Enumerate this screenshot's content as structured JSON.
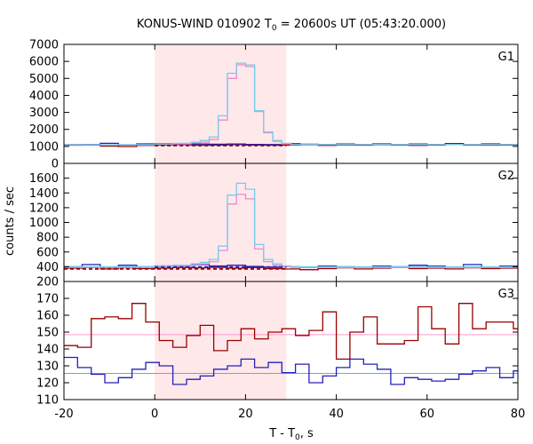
{
  "chart_data": {
    "type": "line",
    "title": {
      "pre": "KONUS-WIND 010902 T",
      "sub": "0",
      "post": " = 20600s UT (05:43:20.000)"
    },
    "xlabel": {
      "pre": "T - T",
      "sub": "0",
      "post": ", s"
    },
    "ylabel": "counts / sec",
    "xlim": [
      -20,
      80
    ],
    "x_ticks": [
      -20,
      0,
      20,
      40,
      60,
      80
    ],
    "x_tick_labels": [
      "-20",
      "0",
      "20",
      "40",
      "60",
      "80"
    ],
    "highlight_interval": [
      0,
      29
    ],
    "colors": {
      "highlight": "#ffe8ea",
      "dark_red": "#990000",
      "blue": "#2222bb",
      "pink": "#ee88cc",
      "light_blue": "#77ccee",
      "bg_pink_line": "#ff99cc",
      "bg_cyan_line": "#44bbdd"
    },
    "panels": [
      {
        "label": "G1",
        "ylim": [
          0,
          7000
        ],
        "yticks": [
          0,
          1000,
          2000,
          3000,
          4000,
          5000,
          6000,
          7000
        ],
        "ytick_labels": [
          "0",
          "1000",
          "2000",
          "3000",
          "4000",
          "5000",
          "6000",
          "7000"
        ],
        "series": [
          {
            "kind": "step",
            "color_key": "dark_red",
            "edges": [
              -20,
              -16,
              -12,
              -8,
              -4,
              0,
              4,
              8,
              12,
              16,
              20,
              24,
              28,
              32,
              36,
              40,
              44,
              48,
              52,
              56,
              60,
              64,
              68,
              72,
              76,
              80
            ],
            "values": [
              1070,
              1080,
              1020,
              990,
              1060,
              1080,
              1100,
              1070,
              1080,
              1100,
              1080,
              1070,
              1080,
              1090,
              1060,
              1080,
              1070,
              1090,
              1080,
              1060,
              1080,
              1100,
              1080,
              1070,
              1080
            ]
          },
          {
            "kind": "step",
            "color_key": "blue",
            "edges": [
              -20,
              -16,
              -12,
              -8,
              -4,
              0,
              4,
              8,
              12,
              16,
              20,
              24,
              28,
              32,
              36,
              40,
              44,
              48,
              52,
              56,
              60,
              64,
              68,
              72,
              76,
              80
            ],
            "values": [
              1100,
              1110,
              1180,
              1080,
              1150,
              1160,
              1120,
              1140,
              1130,
              1140,
              1120,
              1110,
              1160,
              1130,
              1110,
              1140,
              1120,
              1150,
              1110,
              1140,
              1120,
              1170,
              1110,
              1150,
              1120
            ]
          },
          {
            "kind": "step",
            "color_key": "pink",
            "edges": [
              -20,
              0,
              4,
              8,
              10,
              12,
              14,
              16,
              18,
              20,
              22,
              24,
              26,
              28,
              30,
              80
            ],
            "values": [
              1090,
              1120,
              1150,
              1200,
              1250,
              1400,
              2550,
              5000,
              5800,
              5700,
              3050,
              1800,
              1300,
              1150,
              1100
            ]
          },
          {
            "kind": "step",
            "color_key": "light_blue",
            "edges": [
              -20,
              0,
              4,
              8,
              10,
              12,
              14,
              16,
              18,
              20,
              22,
              24,
              26,
              28,
              30,
              80
            ],
            "values": [
              1100,
              1140,
              1180,
              1250,
              1350,
              1550,
              2800,
              5300,
              5900,
              5800,
              3100,
              1850,
              1350,
              1180,
              1110
            ]
          },
          {
            "kind": "hline",
            "color_key": "dark_red",
            "dashed": true,
            "x": [
              0,
              29
            ],
            "y": 1050
          }
        ]
      },
      {
        "label": "G2",
        "ylim": [
          200,
          1800
        ],
        "yticks": [
          200,
          400,
          600,
          800,
          1000,
          1200,
          1400,
          1600
        ],
        "ytick_labels": [
          "200",
          "400",
          "600",
          "800",
          "1000",
          "1200",
          "1400",
          "1600"
        ],
        "series": [
          {
            "kind": "step",
            "color_key": "dark_red",
            "edges": [
              -20,
              -16,
              -12,
              -8,
              -4,
              0,
              4,
              8,
              12,
              16,
              20,
              24,
              28,
              32,
              36,
              40,
              44,
              48,
              52,
              56,
              60,
              64,
              68,
              72,
              76,
              80
            ],
            "values": [
              380,
              390,
              370,
              385,
              375,
              380,
              390,
              385,
              395,
              380,
              390,
              375,
              370,
              360,
              375,
              385,
              370,
              380,
              390,
              375,
              380,
              370,
              385,
              375,
              380
            ]
          },
          {
            "kind": "step",
            "color_key": "blue",
            "edges": [
              -20,
              -16,
              -12,
              -8,
              -4,
              0,
              4,
              8,
              12,
              16,
              20,
              24,
              28,
              32,
              36,
              40,
              44,
              48,
              52,
              56,
              60,
              64,
              68,
              72,
              76,
              80
            ],
            "values": [
              400,
              430,
              390,
              420,
              400,
              410,
              420,
              430,
              410,
              420,
              405,
              395,
              400,
              390,
              410,
              400,
              395,
              410,
              400,
              420,
              410,
              395,
              430,
              390,
              410
            ]
          },
          {
            "kind": "step",
            "color_key": "pink",
            "edges": [
              -20,
              0,
              4,
              8,
              10,
              12,
              14,
              16,
              18,
              20,
              22,
              24,
              26,
              28,
              30,
              80
            ],
            "values": [
              390,
              400,
              410,
              420,
              440,
              470,
              620,
              1250,
              1380,
              1320,
              640,
              470,
              420,
              400,
              390
            ]
          },
          {
            "kind": "step",
            "color_key": "light_blue",
            "edges": [
              -20,
              0,
              4,
              8,
              10,
              12,
              14,
              16,
              18,
              20,
              22,
              24,
              26,
              28,
              30,
              80
            ],
            "values": [
              400,
              410,
              420,
              440,
              460,
              500,
              680,
              1370,
              1530,
              1450,
              700,
              500,
              440,
              410,
              400
            ]
          },
          {
            "kind": "hline",
            "color_key": "blue",
            "dashed": true,
            "x": [
              0,
              29
            ],
            "y": 395
          },
          {
            "kind": "hline",
            "color_key": "dark_red",
            "dashed": true,
            "x": [
              -20,
              29
            ],
            "y": 372
          }
        ]
      },
      {
        "label": "G3",
        "ylim": [
          110,
          180
        ],
        "yticks": [
          110,
          120,
          130,
          140,
          150,
          160,
          170
        ],
        "ytick_labels": [
          "110",
          "120",
          "130",
          "140",
          "150",
          "160",
          "170"
        ],
        "series": [
          {
            "kind": "hline",
            "color_key": "bg_pink_line",
            "dashed": false,
            "x": [
              -20,
              80
            ],
            "y": 148.5
          },
          {
            "kind": "hline",
            "color_key": "bg_cyan_line",
            "dashed": false,
            "x": [
              -20,
              80
            ],
            "y": 125.5
          },
          {
            "kind": "step",
            "color_key": "dark_red",
            "edges": [
              -20,
              -17,
              -14,
              -11,
              -8,
              -5,
              -2,
              1,
              4,
              7,
              10,
              13,
              16,
              19,
              22,
              25,
              28,
              31,
              34,
              37,
              40,
              43,
              46,
              49,
              52,
              55,
              58,
              61,
              64,
              67,
              70,
              73,
              76,
              79,
              80
            ],
            "values": [
              142,
              141,
              158,
              159,
              158,
              167,
              156,
              145,
              141,
              148,
              154,
              139,
              145,
              152,
              146,
              150,
              152,
              148,
              151,
              162,
              134,
              150,
              159,
              143,
              143,
              145,
              165,
              152,
              143,
              167,
              152,
              156,
              156,
              152
            ]
          },
          {
            "kind": "step",
            "color_key": "blue",
            "edges": [
              -20,
              -17,
              -14,
              -11,
              -8,
              -5,
              -2,
              1,
              4,
              7,
              10,
              13,
              16,
              19,
              22,
              25,
              28,
              31,
              34,
              37,
              40,
              43,
              46,
              49,
              52,
              55,
              58,
              61,
              64,
              67,
              70,
              73,
              76,
              79,
              80
            ],
            "values": [
              135,
              129,
              125,
              120,
              123,
              128,
              132,
              130,
              119,
              122,
              124,
              128,
              130,
              134,
              129,
              132,
              126,
              131,
              120,
              124,
              129,
              134,
              131,
              128,
              119,
              123,
              122,
              121,
              122,
              125,
              127,
              129,
              123,
              127
            ]
          }
        ]
      }
    ]
  }
}
